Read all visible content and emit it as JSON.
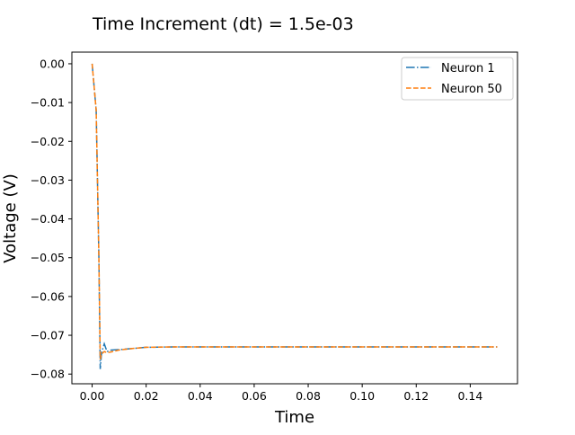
{
  "chart_data": {
    "type": "line",
    "title": "Time Increment (dt) = 1.5e-03",
    "xlabel": "Time",
    "ylabel": "Voltage (V)",
    "xlim": [
      -0.0075,
      0.1575
    ],
    "ylim": [
      -0.0825,
      0.003
    ],
    "xticks": [
      0.0,
      0.02,
      0.04,
      0.06,
      0.08,
      0.1,
      0.12,
      0.14
    ],
    "xtick_labels": [
      "0.00",
      "0.02",
      "0.04",
      "0.06",
      "0.08",
      "0.10",
      "0.12",
      "0.14"
    ],
    "yticks": [
      0.0,
      -0.01,
      -0.02,
      -0.03,
      -0.04,
      -0.05,
      -0.06,
      -0.07,
      -0.08
    ],
    "ytick_labels": [
      "0.00",
      "−0.01",
      "−0.02",
      "−0.03",
      "−0.04",
      "−0.05",
      "−0.06",
      "−0.07",
      "−0.08"
    ],
    "grid": false,
    "legend_position": "top-right",
    "series": [
      {
        "name": "Neuron 1",
        "color": "#1f77b4",
        "dash": "dash-dot",
        "x": [
          0.0,
          0.0015,
          0.0025,
          0.003,
          0.0035,
          0.0045,
          0.0055,
          0.007,
          0.01,
          0.015,
          0.02,
          0.03,
          0.05,
          0.08,
          0.11,
          0.15
        ],
        "y": [
          0.0,
          -0.012,
          -0.05,
          -0.0787,
          -0.0745,
          -0.0722,
          -0.0742,
          -0.0738,
          -0.0737,
          -0.0734,
          -0.0731,
          -0.073,
          -0.073,
          -0.073,
          -0.073,
          -0.073
        ]
      },
      {
        "name": "Neuron 50",
        "color": "#ff7f0e",
        "dash": "dashed",
        "x": [
          0.0,
          0.0015,
          0.0025,
          0.003,
          0.0035,
          0.0045,
          0.0055,
          0.007,
          0.01,
          0.015,
          0.02,
          0.03,
          0.05,
          0.08,
          0.11,
          0.15
        ],
        "y": [
          0.0,
          -0.012,
          -0.05,
          -0.0762,
          -0.0748,
          -0.0742,
          -0.0745,
          -0.0743,
          -0.0738,
          -0.0734,
          -0.0731,
          -0.073,
          -0.073,
          -0.073,
          -0.073,
          -0.073
        ]
      }
    ]
  }
}
